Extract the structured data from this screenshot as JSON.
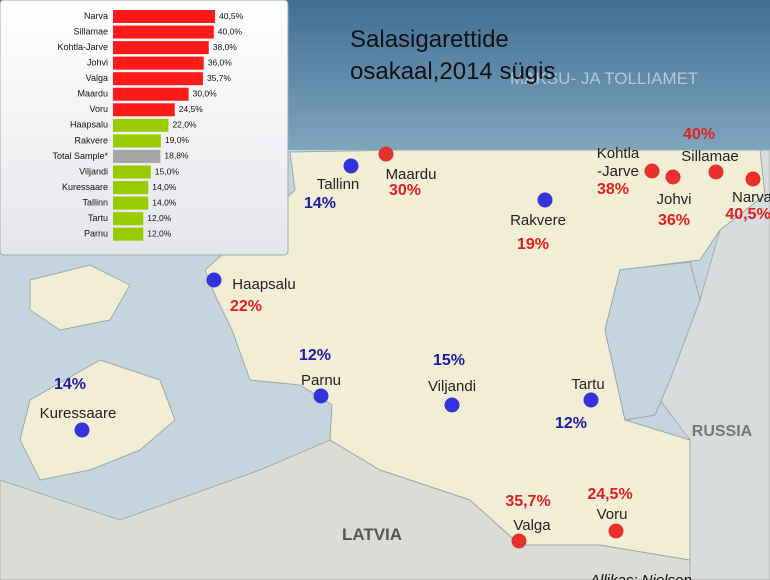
{
  "map": {
    "title_lines": [
      "Salasigarettide",
      "osakaal,2014 sügis"
    ],
    "watermark": "MAKSU- JA TOLLIAMET",
    "countries": [
      "RUSSIA",
      "LATVIA"
    ],
    "source": "Allikas: Nielsen",
    "cities": [
      {
        "name": "Tallinn",
        "label": "14%",
        "dot_color": "#3333dd",
        "label_color": "#1a1aaa"
      },
      {
        "name": "Maardu",
        "label": "30%",
        "dot_color": "#e83030",
        "label_color": "#e02020"
      },
      {
        "name": "Rakvere",
        "label": "19%",
        "dot_color": "#3333dd",
        "label_color": "#e02020"
      },
      {
        "name": "Kohtla\n-Jarve",
        "label": "38%",
        "dot_color": "#e83030",
        "label_color": "#e02020"
      },
      {
        "name": "Johvi",
        "label": "36%",
        "dot_color": "#e83030",
        "label_color": "#e02020"
      },
      {
        "name": "Sillamae",
        "label": "40%",
        "dot_color": "#e83030",
        "label_color": "#e02020"
      },
      {
        "name": "Narva",
        "label": "40,5%",
        "dot_color": "#e83030",
        "label_color": "#e02020"
      },
      {
        "name": "Haapsalu",
        "label": "22%",
        "dot_color": "#3333dd",
        "label_color": "#e02020"
      },
      {
        "name": "Parnu",
        "label": "12%",
        "dot_color": "#3333dd",
        "label_color": "#1a1aaa"
      },
      {
        "name": "Viljandi",
        "label": "15%",
        "dot_color": "#3333dd",
        "label_color": "#1a1aaa"
      },
      {
        "name": "Tartu",
        "label": "12%",
        "dot_color": "#3333dd",
        "label_color": "#1a1aaa"
      },
      {
        "name": "Kuressaare",
        "label": "14%",
        "dot_color": "#3333dd",
        "label_color": "#1a1aaa"
      },
      {
        "name": "Valga",
        "label": "35,7%",
        "dot_color": "#e83030",
        "label_color": "#e02020"
      },
      {
        "name": "Voru",
        "label": "24,5%",
        "dot_color": "#e83030",
        "label_color": "#e02020"
      }
    ]
  },
  "chart_data": {
    "type": "bar",
    "orientation": "horizontal",
    "categories": [
      "Narva",
      "Sillamae",
      "Kohtla-Jarve",
      "Johvi",
      "Valga",
      "Maardu",
      "Voru",
      "Haapsalu",
      "Rakvere",
      "Total Sample*",
      "Viljandi",
      "Kuressaare",
      "Tallinn",
      "Tartu",
      "Parnu"
    ],
    "values": [
      40.5,
      40.0,
      38.0,
      36.0,
      35.7,
      30.0,
      24.5,
      22.0,
      19.0,
      18.8,
      15.0,
      14.0,
      14.0,
      12.0,
      12.0
    ],
    "value_labels": [
      "40,5%",
      "40,0%",
      "38,0%",
      "36,0%",
      "35,7%",
      "30,0%",
      "24,5%",
      "22,0%",
      "19,0%",
      "18,8%",
      "15,0%",
      "14,0%",
      "14,0%",
      "12,0%",
      "12,0%"
    ],
    "colors": [
      "#ff1a1a",
      "#ff1a1a",
      "#ff1a1a",
      "#ff1a1a",
      "#ff1a1a",
      "#ff1a1a",
      "#ff1a1a",
      "#99cc00",
      "#99cc00",
      "#a6a6a6",
      "#99cc00",
      "#99cc00",
      "#99cc00",
      "#99cc00",
      "#99cc00"
    ]
  }
}
